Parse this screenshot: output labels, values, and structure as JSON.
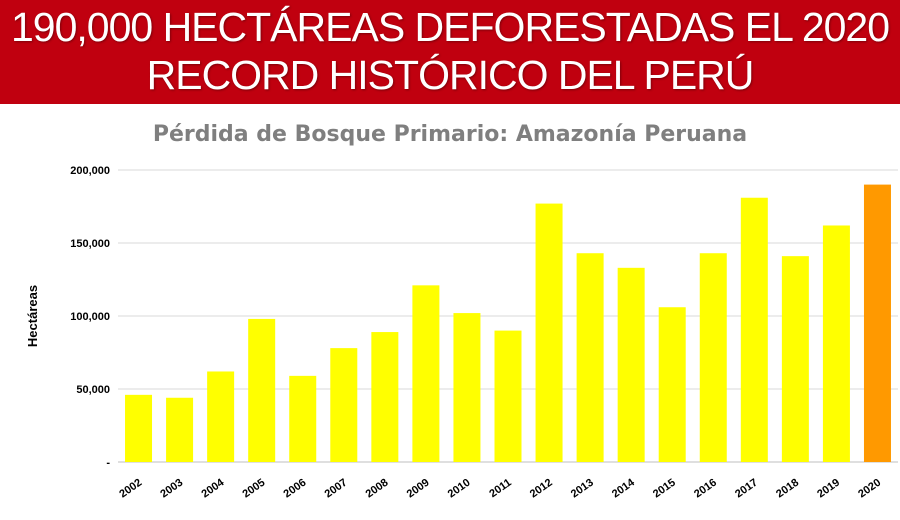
{
  "banner": {
    "line1": "190,000 HECTÁREAS DEFORESTADAS EL 2020",
    "line2": "RECORD HISTÓRICO DEL PERÚ",
    "background": "#c0000f"
  },
  "chart_data": {
    "type": "bar",
    "title": "Pérdida de Bosque Primario: Amazonía Peruana",
    "ylabel": "Hectáreas",
    "xlabel": "",
    "ylim": [
      0,
      200000
    ],
    "yticks": [
      {
        "value": 0,
        "label": "-"
      },
      {
        "value": 50000,
        "label": "50,000"
      },
      {
        "value": 100000,
        "label": "100,000"
      },
      {
        "value": 150000,
        "label": "150,000"
      },
      {
        "value": 200000,
        "label": "200,000"
      }
    ],
    "grid": true,
    "categories": [
      "2002",
      "2003",
      "2004",
      "2005",
      "2006",
      "2007",
      "2008",
      "2009",
      "2010",
      "2011",
      "2012",
      "2013",
      "2014",
      "2015",
      "2016",
      "2017",
      "2018",
      "2019",
      "2020"
    ],
    "values": [
      46000,
      44000,
      62000,
      98000,
      59000,
      78000,
      89000,
      121000,
      102000,
      90000,
      177000,
      143000,
      133000,
      106000,
      143000,
      181000,
      141000,
      162000,
      190000
    ],
    "bar_color": "#ffff00",
    "highlight_color": "#ff9900",
    "highlight_category": "2020"
  }
}
